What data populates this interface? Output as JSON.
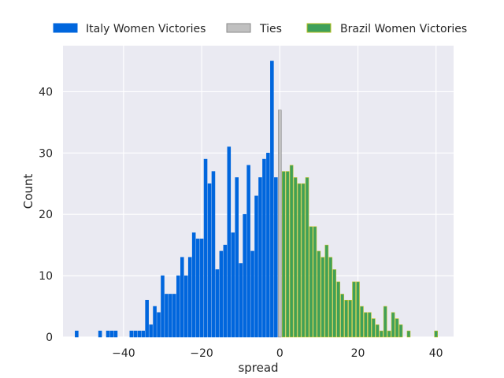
{
  "chart_data": {
    "type": "bar",
    "xlabel": "spread",
    "ylabel": "Count",
    "xlim": [
      -55.5,
      44.5
    ],
    "ylim": [
      0,
      47.5
    ],
    "xticks": [
      -40,
      -20,
      0,
      20,
      40
    ],
    "yticks": [
      0,
      10,
      20,
      30,
      40
    ],
    "grid": true,
    "legend_position": "top",
    "series": [
      {
        "name": "Italy Women Victories",
        "color": "#0066dd",
        "edge_color": "#0066dd",
        "x": [
          -52,
          -46,
          -44,
          -43,
          -42,
          -38,
          -37,
          -36,
          -35,
          -34,
          -33,
          -32,
          -31,
          -30,
          -29,
          -28,
          -27,
          -26,
          -25,
          -24,
          -23,
          -22,
          -21,
          -20,
          -19,
          -18,
          -17,
          -16,
          -15,
          -14,
          -13,
          -12,
          -11,
          -10,
          -9,
          -8,
          -7,
          -6,
          -5,
          -4,
          -3,
          -2,
          -1
        ],
        "values": [
          1,
          1,
          1,
          1,
          1,
          1,
          1,
          1,
          1,
          6,
          2,
          5,
          4,
          10,
          7,
          7,
          7,
          10,
          13,
          10,
          13,
          17,
          16,
          16,
          29,
          25,
          27,
          11,
          14,
          15,
          31,
          17,
          26,
          12,
          20,
          28,
          14,
          23,
          26,
          29,
          30,
          45,
          26
        ]
      },
      {
        "name": "Ties",
        "color": "#c0c0c0",
        "edge_color": "#8a8a8a",
        "x": [
          0
        ],
        "values": [
          37
        ]
      },
      {
        "name": "Brazil Women Victories",
        "color": "#3fa05a",
        "edge_color": "#b8c020",
        "x": [
          1,
          2,
          3,
          4,
          5,
          6,
          7,
          8,
          9,
          10,
          11,
          12,
          13,
          14,
          15,
          16,
          17,
          18,
          19,
          20,
          21,
          22,
          23,
          24,
          25,
          26,
          27,
          28,
          29,
          30,
          31,
          33,
          40
        ],
        "values": [
          27,
          27,
          28,
          26,
          25,
          25,
          26,
          18,
          18,
          14,
          13,
          15,
          13,
          11,
          9,
          7,
          6,
          6,
          9,
          9,
          5,
          4,
          4,
          3,
          2,
          1,
          5,
          1,
          4,
          3,
          2,
          1,
          1
        ]
      }
    ]
  }
}
